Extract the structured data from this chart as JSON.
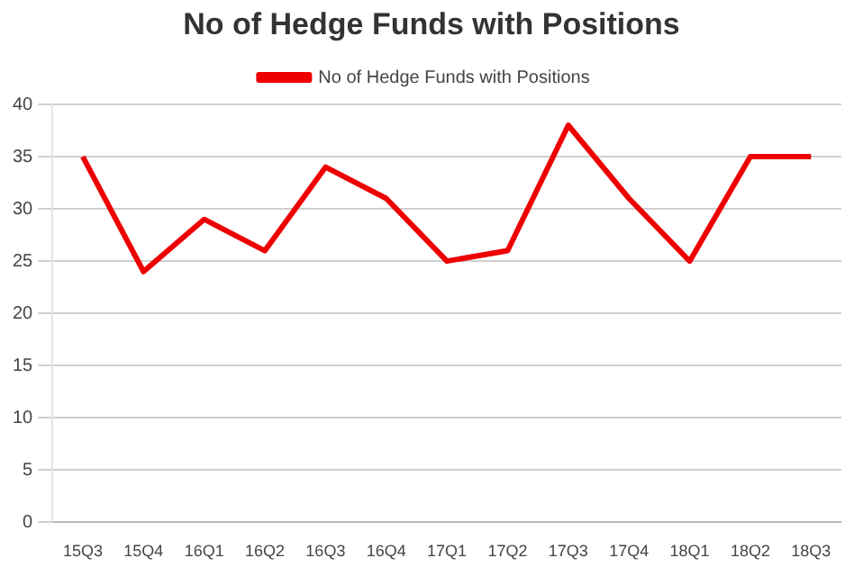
{
  "chart_data": {
    "type": "line",
    "title": "No of Hedge Funds with Positions",
    "categories": [
      "15Q3",
      "15Q4",
      "16Q1",
      "16Q2",
      "16Q3",
      "16Q4",
      "17Q1",
      "17Q2",
      "17Q3",
      "17Q4",
      "18Q1",
      "18Q2",
      "18Q3"
    ],
    "series": [
      {
        "name": "No of Hedge Funds with Positions",
        "color": "#ee0000",
        "values": [
          35,
          24,
          29,
          26,
          34,
          31,
          25,
          26,
          38,
          31,
          25,
          35,
          35
        ]
      }
    ],
    "ylim": [
      0,
      40
    ],
    "yticks": [
      0,
      5,
      10,
      15,
      20,
      25,
      30,
      35,
      40
    ],
    "grid": "y",
    "legend": "top",
    "marker": "none"
  }
}
